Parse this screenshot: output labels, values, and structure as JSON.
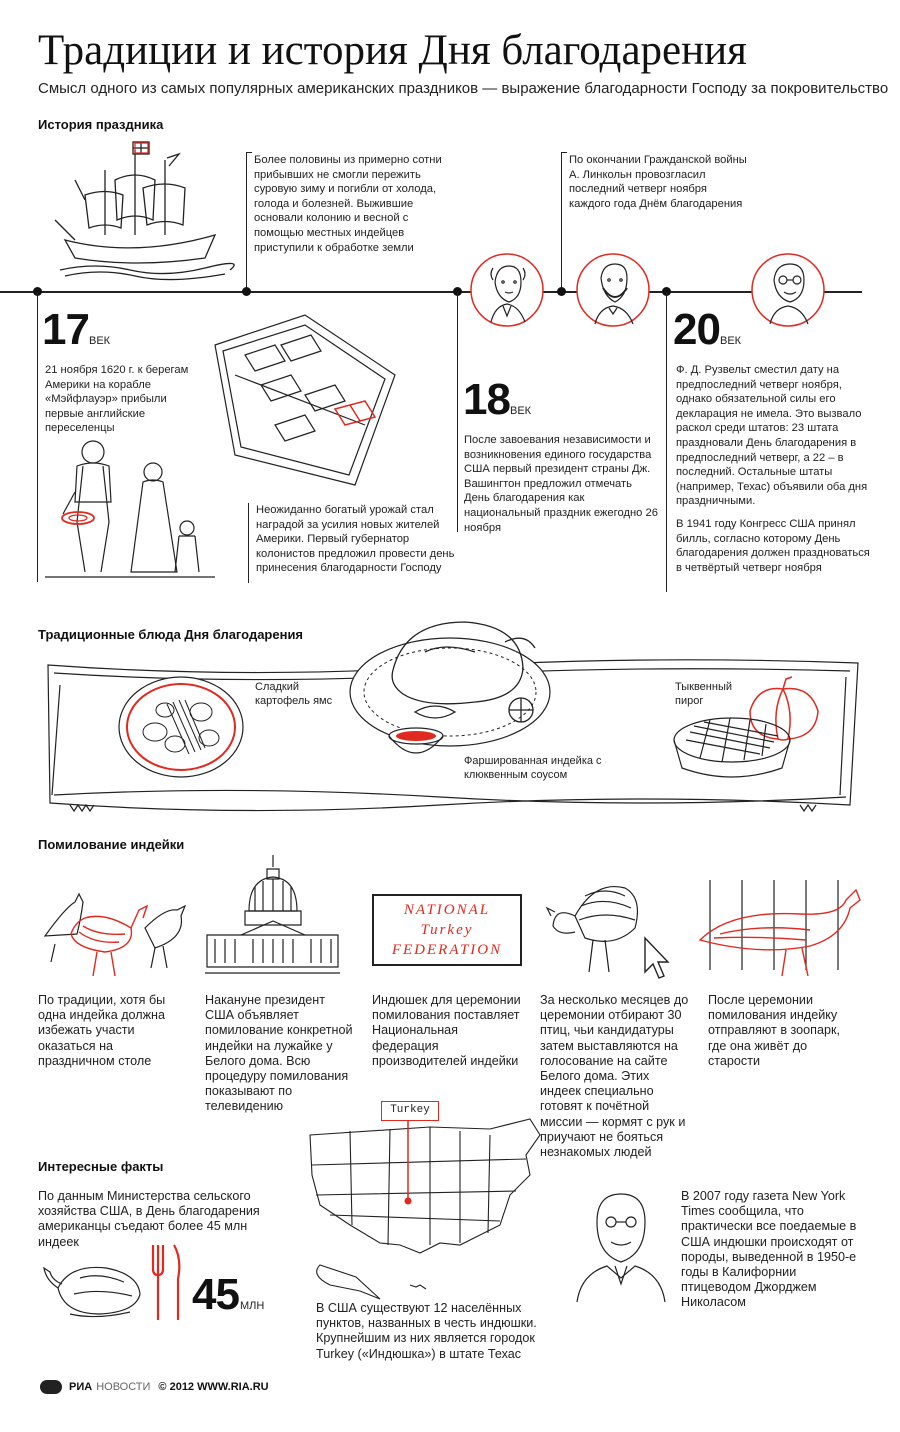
{
  "header": {
    "title": "Традиции и история Дня благодарения",
    "subtitle": "Смысл одного из самых популярных американских праздников — выражение благодарности Господу за покровительство"
  },
  "history": {
    "section_title": "История праздника",
    "ship_note": "Более половины из примерно сотни прибывших не смогли пережить суровую зиму и погибли от холода, голода и болезней. Выжившие основали колонию и весной с помощью местных индейцев приступили к обработке земли",
    "lincoln_note": "По окончании Гражданской войны А. Линкольн провозгласил последний четверг ноября каждого года Днём благодарения",
    "c17": {
      "number": "17",
      "unit": "ВЕК",
      "text": "21 ноября 1620 г. к берегам Америки на корабле «Мэйфлауэр» прибыли первые английские переселенцы"
    },
    "harvest_note": "Неожиданно богатый урожай стал наградой за усилия новых жителей Америки. Первый губернатор колонистов предложил провести день принесения благодарности Господу",
    "c18": {
      "number": "18",
      "unit": "ВЕК",
      "text": "После завоевания независимости и возникновения единого государства США первый президент страны Дж. Вашингтон предложил отмечать День благодарения как национальный праздник ежегодно 26 ноября"
    },
    "c20": {
      "number": "20",
      "unit": "ВЕК",
      "text": "Ф. Д. Рузвельт сместил дату на предпоследний четверг ноября, однако обязательной силы его декларация не имела. Это вызвало раскол среди штатов: 23 штата праздновали День благодарения в предпоследний четверг, а 22 – в последний. Остальные штаты (например, Техас) объявили оба дня праздничными.",
      "text2": "В 1941 году Конгресс США принял билль, согласно которому День благодарения должен праздноваться в четвёртый четверг ноября"
    }
  },
  "dishes": {
    "section_title": "Традиционные блюда Дня благодарения",
    "yam": "Сладкий картофель ямс",
    "turkey": "Фаршированная индейка с клюквенным соусом",
    "pie": "Тыквенный пирог"
  },
  "pardon": {
    "section_title": "Помилование индейки",
    "federation_logo": "NATIONAL Turkey FEDERATION",
    "items": [
      "По традиции, хотя бы одна индейка должна избежать участи оказаться на праздничном столе",
      "Накануне президент США объявляет помилование конкретной индейки на лужайке у Белого дома. Всю процедуру помилования показывают по телевидению",
      "Индюшек для церемонии помилования поставляет Национальная федерация производителей индейки",
      "За несколько месяцев до церемонии отбирают 30 птиц, чьи кандидатуры затем выставляются на голосование на сайте Белого дома. Этих индеек специально готовят к почётной миссии — кормят с рук и приучают не бояться незнакомых людей",
      "После церемонии помилования индейку отправляют в зоопарк, где она живёт до старости"
    ]
  },
  "facts": {
    "section_title": "Интересные факты",
    "consumption_text": "По данным Министерства сельского хозяйства США, в День благодарения американцы съедают более 45 млн индеек",
    "big_number": "45",
    "big_unit": "МЛН",
    "map_sign": "Turkey",
    "towns_text": "В США существуют 12 населённых пунктов, названных в честь индюшки. Крупнейшим из них является городок Turkey («Индюшка») в штате Техас",
    "nyt_text": "В 2007 году газета New York Times сообщила, что практически все поедаемые в США индюшки происходят от породы, выведенной в 1950-е годы в Калифорнии птицеводом Джорджем Николасом"
  },
  "footer": {
    "brand_a": "РИА",
    "brand_b": "НОВОСТИ",
    "copyright": "© 2012 WWW.RIA.RU"
  },
  "colors": {
    "accent": "#e0291f",
    "ink": "#222222"
  }
}
